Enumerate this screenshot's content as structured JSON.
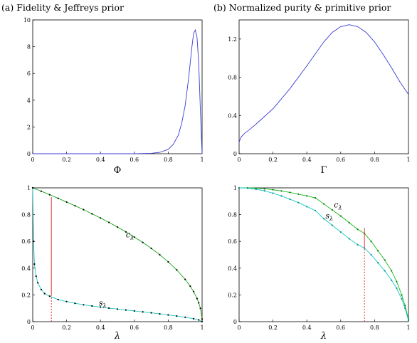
{
  "chart_data": [
    {
      "id": "a",
      "type": "line",
      "title": "(a) Fidelity & Jeffreys prior",
      "xlabel": "Φ",
      "ylabel": "",
      "xlim": [
        0,
        1
      ],
      "ylim": [
        0,
        10
      ],
      "xticks": [
        "0",
        "0.2",
        "0.4",
        "0.6",
        "0.8",
        "1"
      ],
      "yticks": [
        "0",
        "2",
        "4",
        "6",
        "8",
        "10"
      ],
      "series": [
        {
          "color": "#3b3bd6",
          "x": [
            0,
            0.5,
            0.6,
            0.7,
            0.75,
            0.8,
            0.83,
            0.86,
            0.88,
            0.9,
            0.92,
            0.94,
            0.95,
            0.96,
            0.97,
            0.98,
            0.99,
            1.0
          ],
          "y": [
            0,
            0,
            0.005,
            0.03,
            0.1,
            0.32,
            0.7,
            1.4,
            2.3,
            3.6,
            5.6,
            8.0,
            9.0,
            9.25,
            8.7,
            6.8,
            3.2,
            0
          ]
        }
      ]
    },
    {
      "id": "b",
      "type": "line",
      "title": "(b) Normalized purity & primitive prior",
      "xlabel": "Γ",
      "ylabel": "",
      "xlim": [
        0,
        1
      ],
      "ylim": [
        0,
        1.4
      ],
      "xticks": [
        "0",
        "0.2",
        "0.4",
        "0.6",
        "0.8",
        "1"
      ],
      "yticks": [
        "0",
        "0.4",
        "0.8",
        "1.2"
      ],
      "series": [
        {
          "color": "#3b3bd6",
          "x": [
            0,
            0.01,
            0.03,
            0.06,
            0.1,
            0.15,
            0.2,
            0.3,
            0.4,
            0.5,
            0.55,
            0.6,
            0.65,
            0.7,
            0.75,
            0.8,
            0.85,
            0.9,
            0.95,
            1.0
          ],
          "y": [
            0.12,
            0.17,
            0.21,
            0.25,
            0.31,
            0.39,
            0.47,
            0.68,
            0.92,
            1.17,
            1.27,
            1.33,
            1.35,
            1.33,
            1.27,
            1.17,
            1.04,
            0.9,
            0.75,
            0.62
          ]
        }
      ]
    },
    {
      "id": "c",
      "type": "line",
      "title": "",
      "xlabel": "λ",
      "ylabel": "",
      "xlim": [
        0,
        1
      ],
      "ylim": [
        0,
        1
      ],
      "xticks": [
        "0",
        "0.2",
        "0.4",
        "0.6",
        "0.8",
        "1"
      ],
      "yticks": [
        "0",
        "0.2",
        "0.4",
        "0.6",
        "0.8",
        "1"
      ],
      "series": [
        {
          "name": "c_λ",
          "label_base": "c",
          "label_sub": "λ",
          "label_x": 0.55,
          "label_y": 0.63,
          "color": "#17a817",
          "dot_color": "#000000",
          "x": [
            0,
            0.05,
            0.1,
            0.15,
            0.2,
            0.25,
            0.3,
            0.35,
            0.4,
            0.45,
            0.5,
            0.55,
            0.6,
            0.65,
            0.7,
            0.75,
            0.8,
            0.85,
            0.9,
            0.93,
            0.95,
            0.97,
            0.98,
            0.99,
            1.0
          ],
          "y": [
            1,
            0.975,
            0.949,
            0.922,
            0.894,
            0.866,
            0.837,
            0.806,
            0.775,
            0.742,
            0.707,
            0.671,
            0.632,
            0.592,
            0.548,
            0.5,
            0.447,
            0.387,
            0.316,
            0.265,
            0.224,
            0.173,
            0.141,
            0.1,
            0.02
          ]
        },
        {
          "name": "s_λ",
          "label_base": "s",
          "label_sub": "λ",
          "label_x": 0.39,
          "label_y": 0.12,
          "color": "#16c8c8",
          "dot_color": "#000000",
          "x": [
            0,
            0.005,
            0.01,
            0.02,
            0.03,
            0.05,
            0.07,
            0.1,
            0.15,
            0.2,
            0.25,
            0.3,
            0.35,
            0.4,
            0.45,
            0.5,
            0.55,
            0.6,
            0.65,
            0.7,
            0.75,
            0.8,
            0.85,
            0.9,
            0.95,
            0.98,
            1.0
          ],
          "y": [
            1.0,
            0.6,
            0.43,
            0.34,
            0.29,
            0.24,
            0.21,
            0.19,
            0.165,
            0.15,
            0.137,
            0.126,
            0.117,
            0.109,
            0.101,
            0.094,
            0.087,
            0.08,
            0.073,
            0.066,
            0.058,
            0.05,
            0.042,
            0.033,
            0.022,
            0.013,
            0.0
          ]
        }
      ],
      "vline": {
        "x": 0.11,
        "y_solid": [
          0.2,
          0.93
        ],
        "y_dashed": [
          0,
          0.2
        ],
        "color": "#e01a1a"
      }
    },
    {
      "id": "d",
      "type": "line",
      "title": "",
      "xlabel": "λ",
      "ylabel": "",
      "xlim": [
        0,
        1
      ],
      "ylim": [
        0,
        1
      ],
      "xticks": [
        "0",
        "0.2",
        "0.4",
        "0.6",
        "0.8",
        "1"
      ],
      "yticks": [
        "0",
        "0.2",
        "0.4",
        "0.6",
        "0.8",
        "1"
      ],
      "series": [
        {
          "name": "c_λ",
          "label_base": "c",
          "label_sub": "λ",
          "label_x": 0.56,
          "label_y": 0.855,
          "color": "#17b817",
          "dot_color": "#0a7a0a",
          "x": [
            0,
            0.05,
            0.1,
            0.15,
            0.2,
            0.25,
            0.3,
            0.35,
            0.4,
            0.45,
            0.5,
            0.55,
            0.6,
            0.65,
            0.7,
            0.74,
            0.78,
            0.82,
            0.86,
            0.9,
            0.93,
            0.96,
            0.98,
            1.0
          ],
          "y": [
            1.0,
            1.0,
            0.998,
            0.993,
            0.986,
            0.977,
            0.966,
            0.953,
            0.94,
            0.925,
            0.88,
            0.835,
            0.79,
            0.74,
            0.69,
            0.66,
            0.6,
            0.53,
            0.46,
            0.38,
            0.3,
            0.2,
            0.12,
            0.02
          ]
        },
        {
          "name": "s_λ",
          "label_base": "s",
          "label_sub": "λ",
          "label_x": 0.51,
          "label_y": 0.77,
          "color": "#16c8c8",
          "dot_color": "#0e8f8f",
          "x": [
            0,
            0.05,
            0.1,
            0.15,
            0.2,
            0.25,
            0.3,
            0.35,
            0.4,
            0.45,
            0.5,
            0.55,
            0.6,
            0.65,
            0.7,
            0.74,
            0.78,
            0.82,
            0.86,
            0.9,
            0.93,
            0.96,
            0.98,
            1.0
          ],
          "y": [
            1.0,
            0.998,
            0.99,
            0.978,
            0.96,
            0.94,
            0.915,
            0.89,
            0.86,
            0.83,
            0.77,
            0.72,
            0.67,
            0.62,
            0.575,
            0.55,
            0.5,
            0.44,
            0.38,
            0.31,
            0.25,
            0.17,
            0.1,
            0.01
          ]
        }
      ],
      "vline": {
        "x": 0.74,
        "y_solid": [
          0.55,
          0.7
        ],
        "y_dashed": [
          0,
          0.55
        ],
        "color": "#e01a1a"
      }
    }
  ]
}
